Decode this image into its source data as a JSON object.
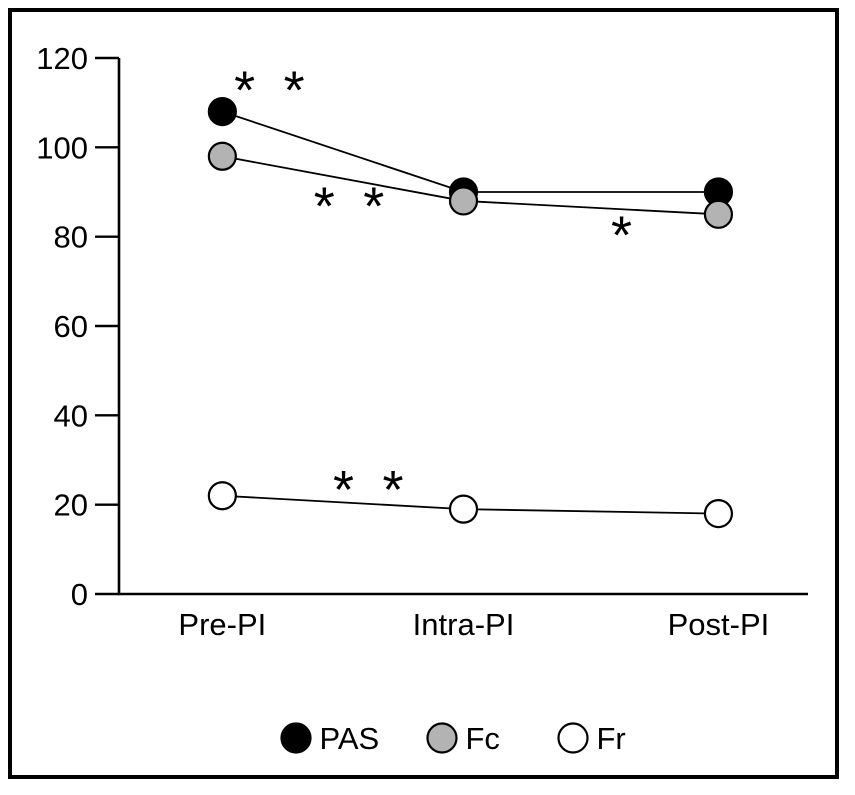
{
  "figure": {
    "background": "#ffffff",
    "frame_color": "#000000"
  },
  "chart_data": {
    "type": "line",
    "title": "",
    "xlabel": "",
    "ylabel": "",
    "categories": [
      "Pre-PI",
      "Intra-PI",
      "Post-PI"
    ],
    "series": [
      {
        "name": "PAS",
        "values": [
          108,
          90,
          90
        ],
        "marker_fill": "#000000"
      },
      {
        "name": "Fc",
        "values": [
          98,
          88,
          85
        ],
        "marker_fill": "#b3b3b3"
      },
      {
        "name": "Fr",
        "values": [
          22,
          19,
          18
        ],
        "marker_fill": "#ffffff"
      }
    ],
    "ylim": [
      0,
      120
    ],
    "yticks": [
      0,
      20,
      40,
      60,
      80,
      100,
      120
    ],
    "grid": false,
    "line_color": "#000000",
    "legend": {
      "position": "bottom",
      "entries": [
        "PAS",
        "Fc",
        "Fr"
      ]
    },
    "annotations": [
      {
        "text": "**",
        "x": 0.22,
        "y": 115,
        "note": "significance between Pre-PI and Intra-PI, PAS line"
      },
      {
        "text": "**",
        "x": 0.55,
        "y": 89,
        "note": "significance between Pre-PI and Intra-PI, Fc line"
      },
      {
        "text": "*",
        "x": 1.62,
        "y": 82.5,
        "note": "significance between Intra-PI and Post-PI, Fc line"
      },
      {
        "text": "**",
        "x": 0.63,
        "y": 25.5,
        "note": "significance between Pre-PI and Intra-PI, Fr line"
      }
    ]
  }
}
